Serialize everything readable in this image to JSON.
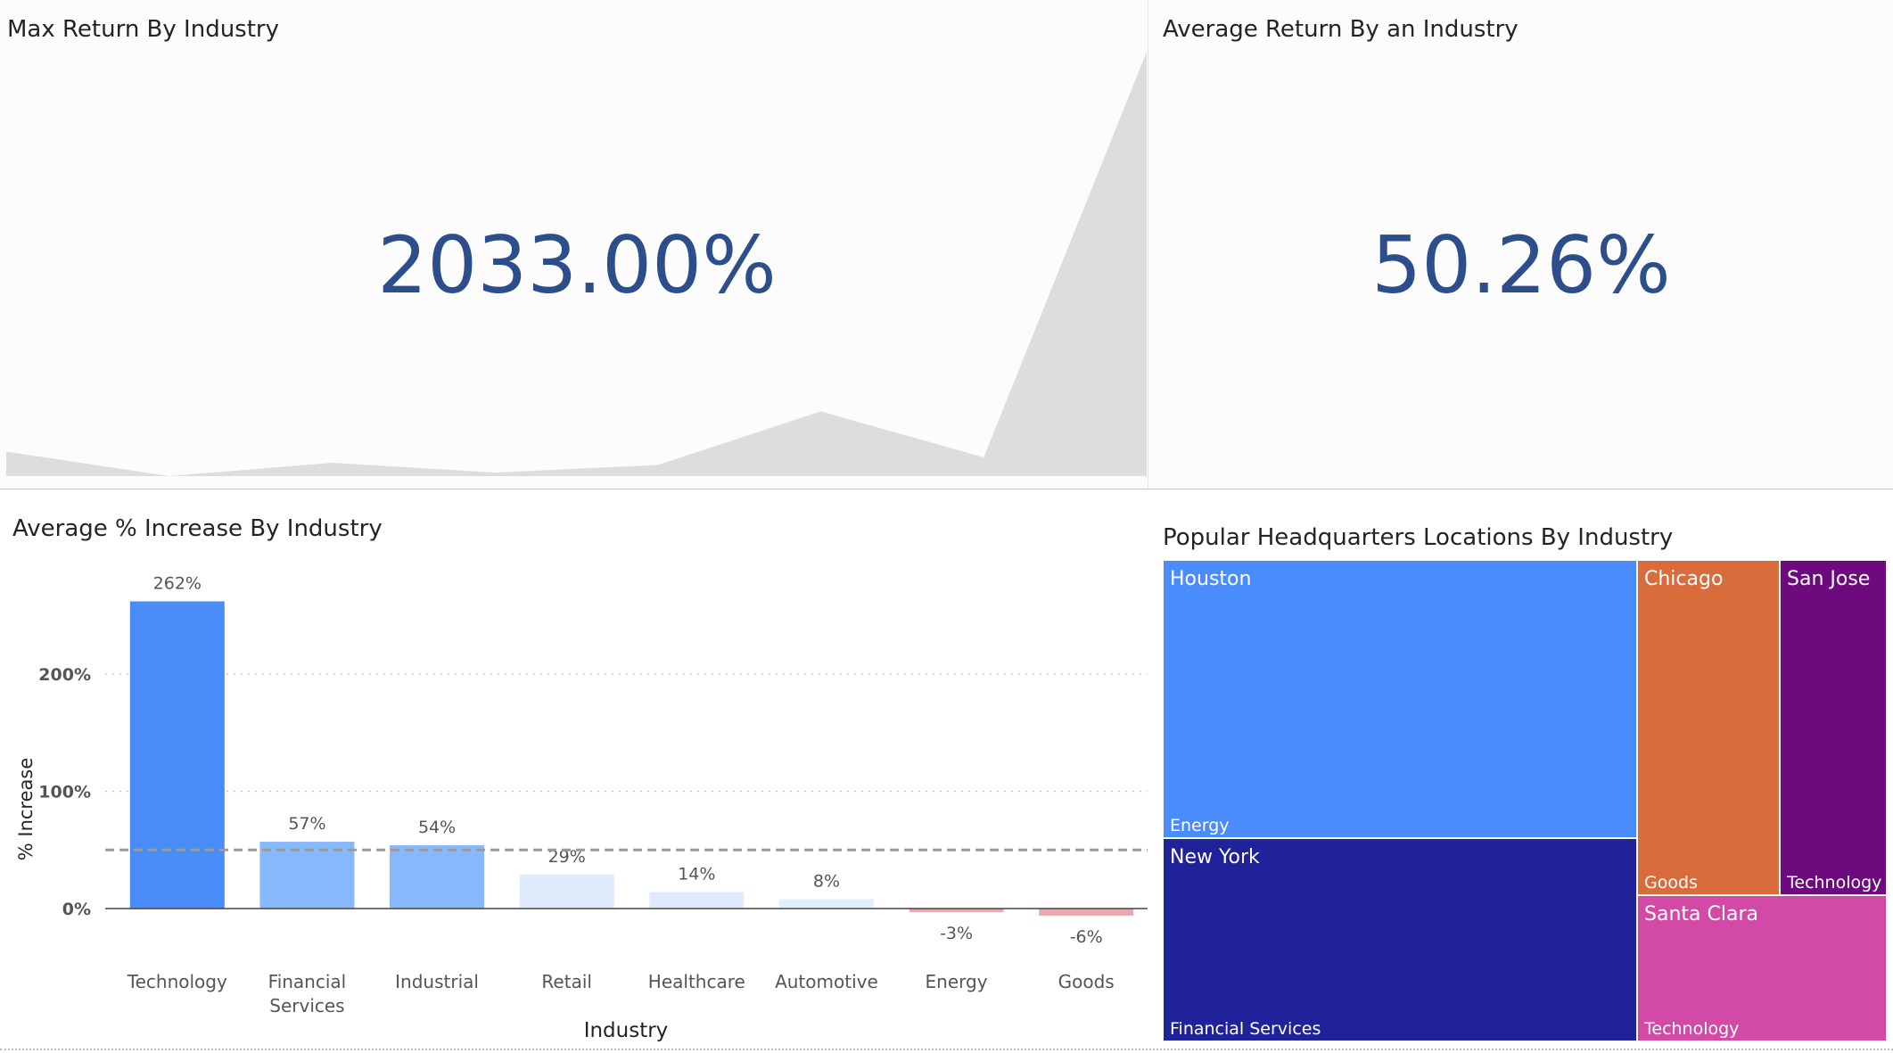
{
  "kpi_cards": [
    {
      "title": "Max Return By Industry",
      "value": "2033.00%"
    },
    {
      "title": "Average Return By an Industry",
      "value": "50.26%"
    }
  ],
  "sparkline": {
    "type": "area",
    "values": [
      55,
      0,
      30,
      8,
      25,
      145,
      42,
      950
    ],
    "fill": "#dddddc"
  },
  "chart_data": {
    "type": "bar",
    "title": "Average % Increase By Industry",
    "xlabel": "Industry",
    "ylabel": "% Increase",
    "categories": [
      "Technology",
      "Financial Services",
      "Industrial",
      "Retail",
      "Healthcare",
      "Automotive",
      "Energy",
      "Goods"
    ],
    "values": [
      262,
      57,
      54,
      29,
      14,
      8,
      -3,
      -6
    ],
    "labels": [
      "262%",
      "57%",
      "54%",
      "29%",
      "14%",
      "8%",
      "-3%",
      "-6%"
    ],
    "average_line": 50,
    "ylim": [
      -20,
      270
    ],
    "yticks": [
      0,
      100,
      200
    ],
    "ytick_labels": [
      "0%",
      "100%",
      "200%"
    ],
    "colors": [
      "#4a8cf7",
      "#86b8fb",
      "#86b8fb",
      "#deebfd",
      "#deebfd",
      "#e3eefe",
      "#e8aab2",
      "#e8aab2"
    ],
    "grid": true,
    "legend": "none"
  },
  "treemap": {
    "title": "Popular Headquarters Locations By Industry",
    "tiles": [
      {
        "city": "Houston",
        "industry": "Energy",
        "color": "#4a8cfc"
      },
      {
        "city": "New York",
        "industry": "Financial Services",
        "color": "#20229a"
      },
      {
        "city": "Chicago",
        "industry": "Goods",
        "color": "#d86c3c"
      },
      {
        "city": "San Jose",
        "industry": "Technology",
        "color": "#6c0a7e"
      },
      {
        "city": "Santa Clara",
        "industry": "Technology",
        "color": "#d24aa6"
      }
    ]
  }
}
